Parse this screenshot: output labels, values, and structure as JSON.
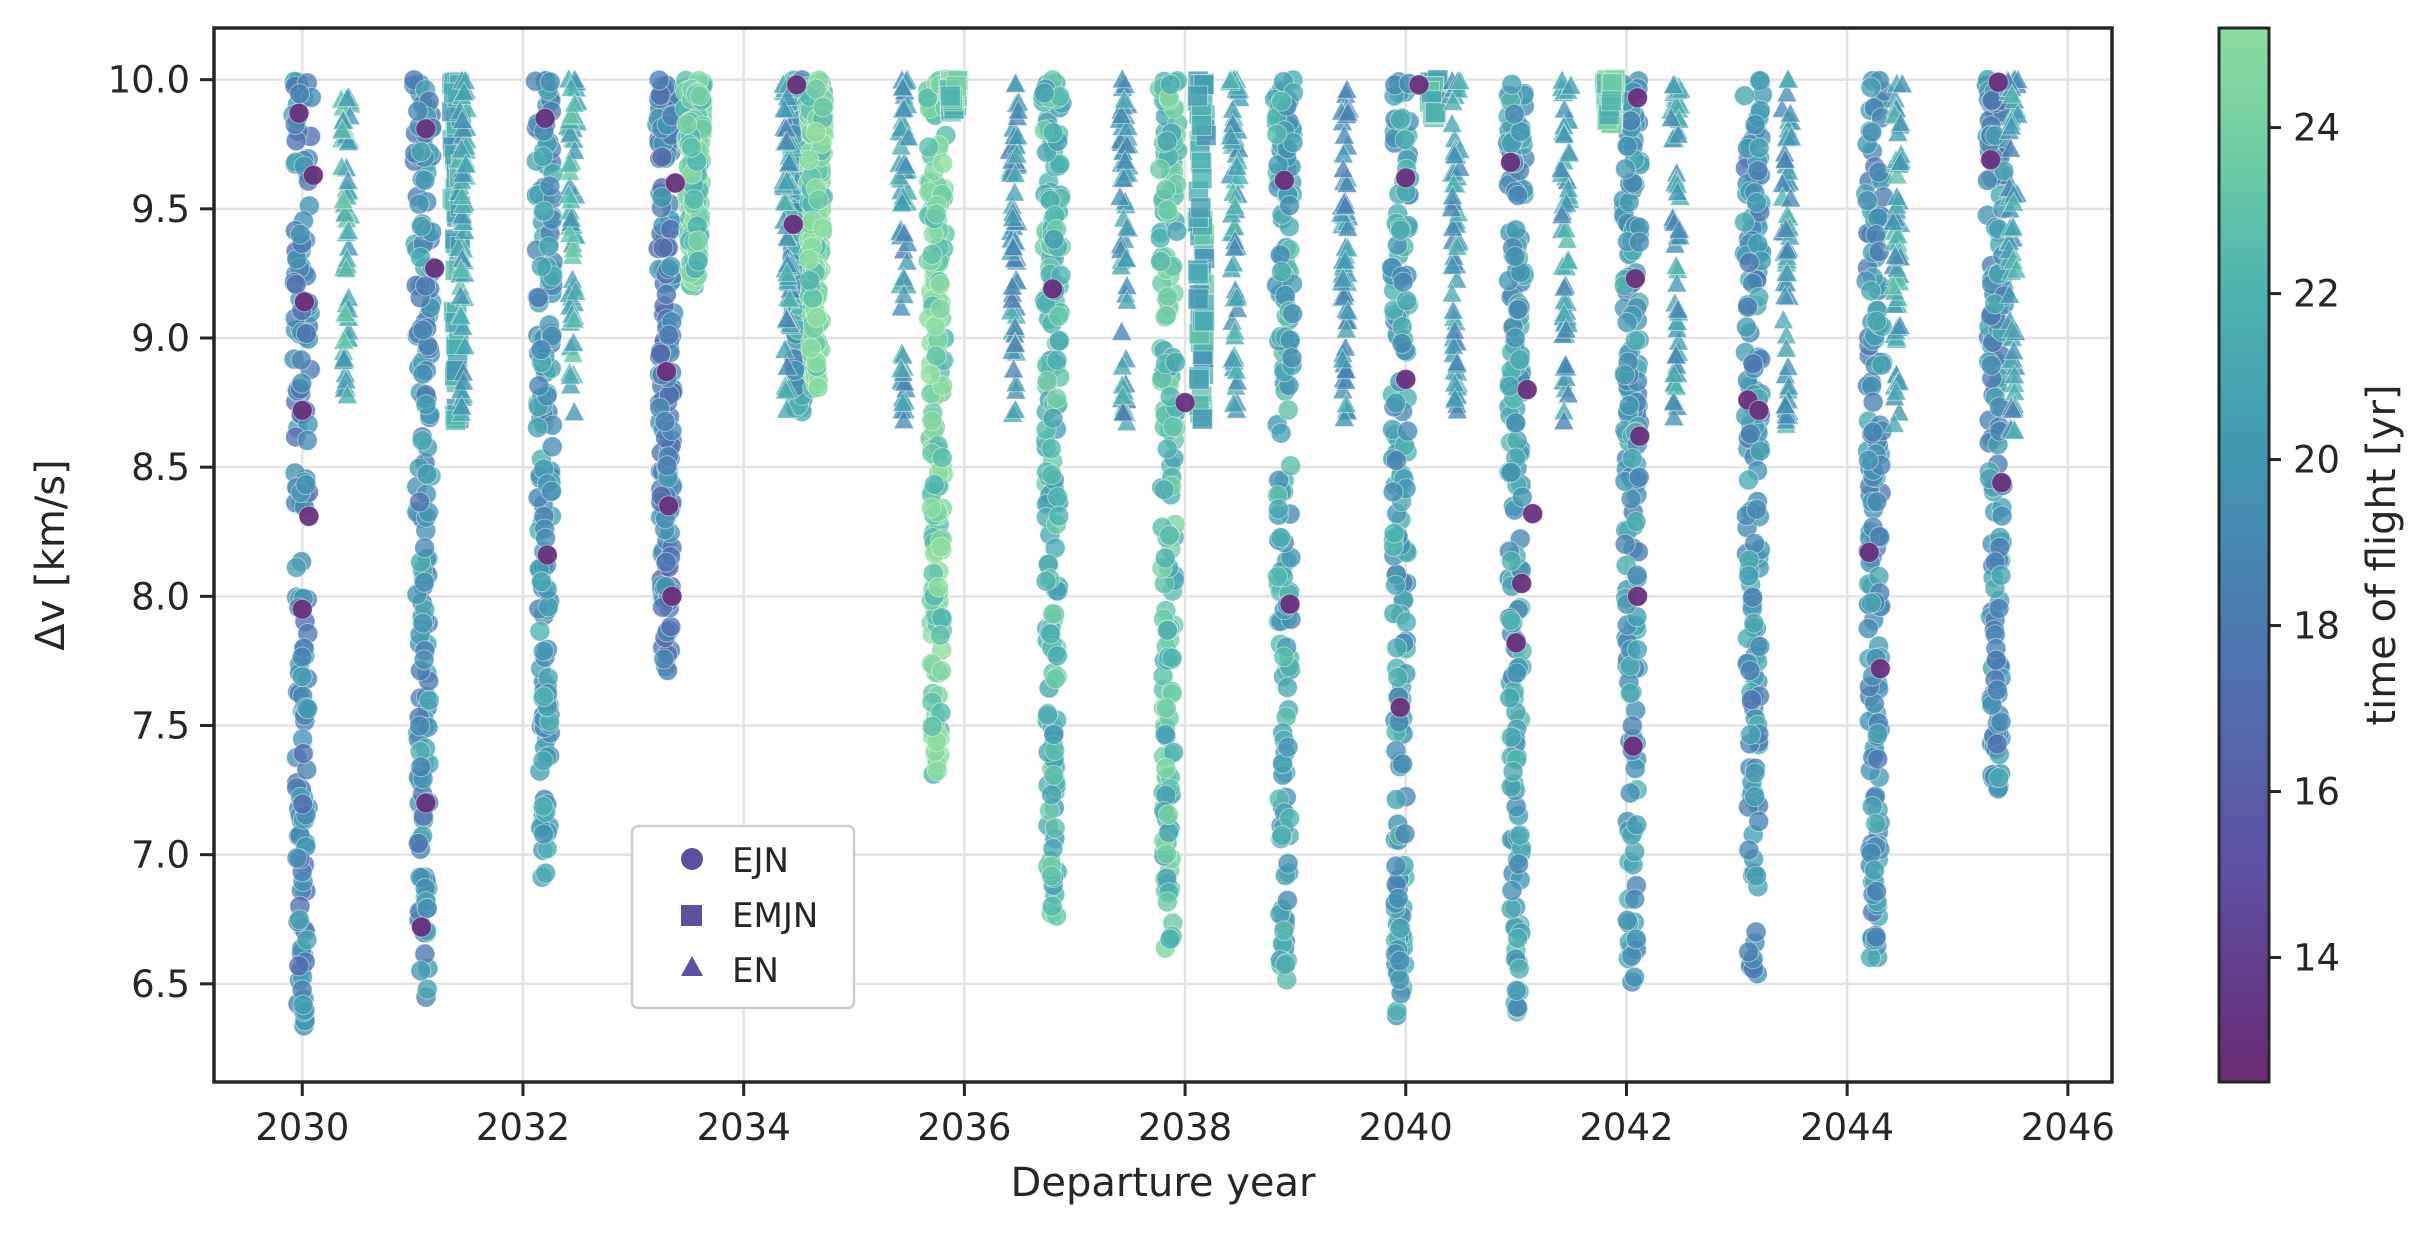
{
  "chart_data": {
    "type": "scatter",
    "xlabel": "Departure year",
    "ylabel": "Δv [km/s]",
    "xlim": [
      2029.2,
      2046.4
    ],
    "ylim": [
      6.12,
      10.2
    ],
    "xticks": [
      2030,
      2032,
      2034,
      2036,
      2038,
      2040,
      2042,
      2044,
      2046
    ],
    "yticks": [
      6.5,
      7.0,
      7.5,
      8.0,
      8.5,
      9.0,
      9.5,
      10.0
    ],
    "ytick_labels": [
      "6.5",
      "7.0",
      "7.5",
      "8.0",
      "8.5",
      "9.0",
      "9.5",
      "10.0"
    ],
    "grid": true,
    "legend_position": "lower-left",
    "colorbar": {
      "label": "time of flight [yr]",
      "range": [
        12.5,
        25.2
      ],
      "ticks": [
        14,
        16,
        18,
        20,
        22,
        24
      ],
      "colormap": "viridis-crest",
      "colors": [
        "#6a2a74",
        "#5e4fa2",
        "#4f74b0",
        "#4295b2",
        "#4db3af",
        "#6fcca5",
        "#8ddc9f"
      ]
    },
    "series": [
      {
        "name": "EJN",
        "marker": "circle",
        "color": "#5e4fa2",
        "clusters": [
          {
            "x": 2030.0,
            "ymin": 6.32,
            "ymax": 10.0,
            "tof_mean": 19.0
          },
          {
            "x": 2031.1,
            "ymin": 6.44,
            "ymax": 10.0,
            "tof_mean": 19.5
          },
          {
            "x": 2032.2,
            "ymin": 6.91,
            "ymax": 10.0,
            "tof_mean": 20.0
          },
          {
            "x": 2033.3,
            "ymin": 7.7,
            "ymax": 10.0,
            "tof_mean": 18.5
          },
          {
            "x": 2033.55,
            "ymin": 9.2,
            "ymax": 10.0,
            "tof_mean": 23.5
          },
          {
            "x": 2034.5,
            "ymin": 8.7,
            "ymax": 10.0,
            "tof_mean": 20.5
          },
          {
            "x": 2034.65,
            "ymin": 8.8,
            "ymax": 10.0,
            "tof_mean": 24.0
          },
          {
            "x": 2035.75,
            "ymin": 7.3,
            "ymax": 10.0,
            "tof_mean": 24.0
          },
          {
            "x": 2036.8,
            "ymin": 6.76,
            "ymax": 10.0,
            "tof_mean": 22.0
          },
          {
            "x": 2037.85,
            "ymin": 6.63,
            "ymax": 10.0,
            "tof_mean": 22.5
          },
          {
            "x": 2038.9,
            "ymin": 6.51,
            "ymax": 10.0,
            "tof_mean": 21.0
          },
          {
            "x": 2039.95,
            "ymin": 6.35,
            "ymax": 10.0,
            "tof_mean": 20.5
          },
          {
            "x": 2041.0,
            "ymin": 6.34,
            "ymax": 10.0,
            "tof_mean": 20.5
          },
          {
            "x": 2042.05,
            "ymin": 6.49,
            "ymax": 10.0,
            "tof_mean": 20.0
          },
          {
            "x": 2043.15,
            "ymin": 6.48,
            "ymax": 10.0,
            "tof_mean": 19.5
          },
          {
            "x": 2044.25,
            "ymin": 6.6,
            "ymax": 10.0,
            "tof_mean": 19.5
          },
          {
            "x": 2045.35,
            "ymin": 7.23,
            "ymax": 10.0,
            "tof_mean": 19.5
          }
        ]
      },
      {
        "name": "EMJN",
        "marker": "square",
        "color": "#5e4fa2",
        "clusters": [
          {
            "x": 2031.4,
            "ymin": 8.68,
            "ymax": 10.0,
            "tof_mean": 21.0
          },
          {
            "x": 2035.9,
            "ymin": 9.87,
            "ymax": 10.0,
            "tof_mean": 23.0
          },
          {
            "x": 2038.15,
            "ymin": 8.66,
            "ymax": 10.0,
            "tof_mean": 21.5
          },
          {
            "x": 2040.25,
            "ymin": 9.85,
            "ymax": 10.0,
            "tof_mean": 22.0
          },
          {
            "x": 2041.85,
            "ymin": 9.83,
            "ymax": 10.0,
            "tof_mean": 23.0
          }
        ]
      },
      {
        "name": "EN",
        "marker": "triangle",
        "color": "#5e4fa2",
        "clusters": [
          {
            "x": 2030.4,
            "ymin": 8.7,
            "ymax": 10.0,
            "tof_mean": 21.5
          },
          {
            "x": 2031.45,
            "ymin": 8.7,
            "ymax": 10.0,
            "tof_mean": 21.0
          },
          {
            "x": 2032.45,
            "ymin": 8.7,
            "ymax": 10.0,
            "tof_mean": 21.5
          },
          {
            "x": 2034.4,
            "ymin": 8.68,
            "ymax": 10.0,
            "tof_mean": 20.5
          },
          {
            "x": 2035.45,
            "ymin": 8.67,
            "ymax": 10.0,
            "tof_mean": 20.0
          },
          {
            "x": 2036.45,
            "ymin": 8.67,
            "ymax": 10.0,
            "tof_mean": 20.0
          },
          {
            "x": 2037.45,
            "ymin": 8.67,
            "ymax": 10.0,
            "tof_mean": 20.0
          },
          {
            "x": 2038.45,
            "ymin": 8.68,
            "ymax": 10.0,
            "tof_mean": 20.5
          },
          {
            "x": 2039.45,
            "ymin": 8.67,
            "ymax": 10.0,
            "tof_mean": 20.0
          },
          {
            "x": 2040.45,
            "ymin": 8.68,
            "ymax": 10.0,
            "tof_mean": 20.5
          },
          {
            "x": 2041.45,
            "ymin": 8.65,
            "ymax": 10.0,
            "tof_mean": 20.5
          },
          {
            "x": 2042.45,
            "ymin": 8.66,
            "ymax": 10.0,
            "tof_mean": 20.5
          },
          {
            "x": 2043.45,
            "ymin": 8.65,
            "ymax": 10.0,
            "tof_mean": 20.5
          },
          {
            "x": 2044.45,
            "ymin": 8.65,
            "ymax": 10.0,
            "tof_mean": 21.0
          },
          {
            "x": 2045.5,
            "ymin": 8.62,
            "ymax": 10.0,
            "tof_mean": 20.5
          }
        ]
      }
    ],
    "highlighted_points": [
      {
        "x": 2029.97,
        "y": 9.87
      },
      {
        "x": 2030.02,
        "y": 9.14
      },
      {
        "x": 2030.0,
        "y": 8.72
      },
      {
        "x": 2030.06,
        "y": 8.31
      },
      {
        "x": 2030.0,
        "y": 7.95
      },
      {
        "x": 2030.1,
        "y": 9.63
      },
      {
        "x": 2031.12,
        "y": 9.81
      },
      {
        "x": 2031.2,
        "y": 9.27
      },
      {
        "x": 2031.12,
        "y": 7.2
      },
      {
        "x": 2031.08,
        "y": 6.72
      },
      {
        "x": 2032.2,
        "y": 9.85
      },
      {
        "x": 2032.22,
        "y": 8.16
      },
      {
        "x": 2033.38,
        "y": 9.6
      },
      {
        "x": 2033.3,
        "y": 8.87
      },
      {
        "x": 2033.32,
        "y": 8.35
      },
      {
        "x": 2033.35,
        "y": 8.0
      },
      {
        "x": 2034.45,
        "y": 9.44
      },
      {
        "x": 2034.48,
        "y": 9.98
      },
      {
        "x": 2036.8,
        "y": 9.19
      },
      {
        "x": 2038.0,
        "y": 8.75
      },
      {
        "x": 2038.9,
        "y": 9.61
      },
      {
        "x": 2038.95,
        "y": 7.97
      },
      {
        "x": 2040.0,
        "y": 9.62
      },
      {
        "x": 2040.0,
        "y": 8.84
      },
      {
        "x": 2039.95,
        "y": 7.57
      },
      {
        "x": 2040.12,
        "y": 9.98
      },
      {
        "x": 2040.95,
        "y": 9.68
      },
      {
        "x": 2041.1,
        "y": 8.8
      },
      {
        "x": 2041.05,
        "y": 8.05
      },
      {
        "x": 2041.15,
        "y": 8.32
      },
      {
        "x": 2041.0,
        "y": 7.82
      },
      {
        "x": 2042.1,
        "y": 9.93
      },
      {
        "x": 2042.08,
        "y": 9.23
      },
      {
        "x": 2042.12,
        "y": 8.62
      },
      {
        "x": 2042.1,
        "y": 8.0
      },
      {
        "x": 2042.06,
        "y": 7.42
      },
      {
        "x": 2043.1,
        "y": 8.76
      },
      {
        "x": 2043.2,
        "y": 8.72
      },
      {
        "x": 2044.2,
        "y": 8.17
      },
      {
        "x": 2044.3,
        "y": 7.72
      },
      {
        "x": 2045.3,
        "y": 9.69
      },
      {
        "x": 2045.37,
        "y": 9.99
      },
      {
        "x": 2045.4,
        "y": 8.44
      }
    ]
  }
}
